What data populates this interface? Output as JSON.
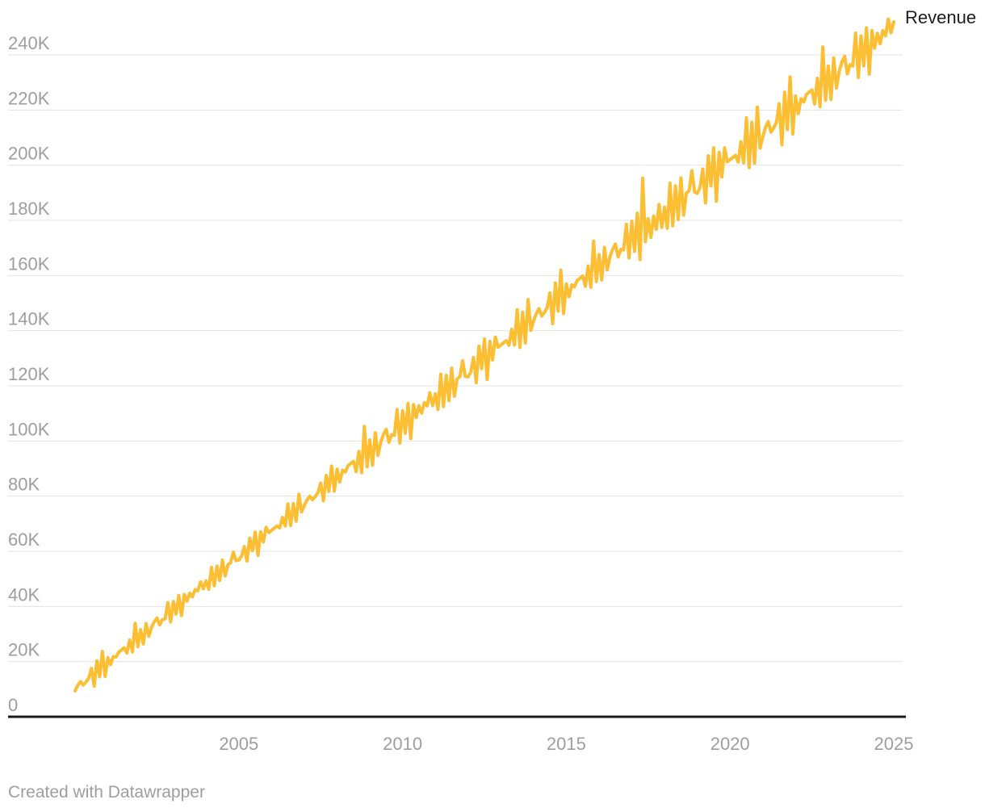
{
  "chart_data": {
    "type": "line",
    "title": "",
    "unit": "thousands",
    "grid": "horizontal",
    "legend": "line-end-label",
    "x_axis": {
      "start_year": 2000,
      "end_year": 2025,
      "interval": "monthly",
      "tick_years": [
        2005,
        2010,
        2015,
        2020,
        2025
      ]
    },
    "y_axis": {
      "tick_values": [
        0,
        20,
        40,
        60,
        80,
        100,
        120,
        140,
        160,
        180,
        200,
        220,
        240
      ],
      "tick_labels": [
        "0",
        "20K",
        "40K",
        "60K",
        "80K",
        "100K",
        "120K",
        "140K",
        "160K",
        "180K",
        "200K",
        "220K",
        "240K"
      ],
      "ylim_k": [
        0,
        256
      ]
    },
    "series": [
      {
        "name": "Revenue",
        "color": "#FCBE32",
        "values": [
          9.4,
          11.4,
          12.8,
          11.5,
          12.6,
          14.0,
          17.5,
          11.1,
          20.3,
          14.5,
          23.7,
          14.6,
          21.4,
          18.9,
          21.8,
          21.7,
          23.4,
          24.2,
          25.0,
          23.1,
          27.8,
          23.5,
          33.9,
          25.4,
          31.6,
          26.4,
          33.8,
          29.2,
          32.4,
          34.4,
          35.8,
          33.3,
          35.3,
          35.5,
          41.4,
          34.4,
          41.8,
          37.2,
          44.0,
          36.7,
          44.4,
          41.9,
          44.8,
          43.5,
          46.1,
          45.7,
          48.9,
          46.4,
          49.3,
          46.2,
          54.2,
          47.5,
          54.6,
          49.4,
          56.8,
          51.0,
          55.1,
          55.9,
          59.7,
          56.6,
          56.8,
          58.2,
          61.7,
          56.5,
          64.8,
          60.2,
          67.0,
          58.5,
          67.1,
          63.4,
          68.7,
          66.8,
          67.6,
          68.4,
          69.2,
          68.5,
          72.3,
          69.2,
          77.2,
          69.3,
          77.3,
          70.9,
          80.7,
          74.3,
          76.6,
          78.6,
          80.0,
          78.7,
          79.8,
          81.2,
          84.7,
          78.3,
          87.5,
          81.7,
          90.9,
          81.8,
          89.8,
          85.1,
          89.4,
          88.7,
          91.0,
          91.8,
          92.6,
          88.9,
          96.2,
          88.5,
          105.3,
          90.6,
          100.4,
          91.2,
          103.0,
          94.8,
          99.6,
          102.4,
          104.2,
          99.5,
          102.3,
          102.1,
          111.4,
          99.2,
          111.0,
          102.8,
          113.6,
          100.9,
          113.2,
          108.5,
          112.8,
          110.1,
          113.9,
          112.7,
          117.5,
          112.8,
          117.1,
          111.4,
          124.2,
          112.5,
          123.8,
          114.6,
          126.4,
          116.2,
          122.5,
          123.3,
          129.1,
          123.4,
          123.2,
          125.0,
          130.3,
          121.1,
          134.4,
          126.2,
          137.0,
          122.3,
          136.1,
          129.4,
          137.7,
          134.0,
          134.8,
          135.6,
          136.4,
          134.7,
          140.5,
          134.8,
          147.6,
          133.9,
          146.7,
          135.5,
          151.3,
          140.1,
          143.4,
          146.2,
          148.0,
          145.3,
          146.6,
          148.4,
          153.7,
          142.5,
          157.3,
          147.1,
          161.9,
          146.2,
          157.0,
          152.3,
          156.6,
          155.9,
          158.2,
          159.0,
          159.8,
          156.1,
          163.4,
          155.7,
          172.5,
          157.8,
          167.6,
          158.4,
          170.2,
          162.0,
          166.8,
          169.6,
          171.4,
          166.7,
          169.5,
          169.3,
          178.6,
          166.4,
          179.7,
          168.8,
          182.6,
          165.8,
          195.3,
          172.2,
          180.6,
          173.8,
          181.6,
          176.7,
          185.8,
          177.4,
          184.8,
          177.1,
          193.5,
          178.0,
          192.5,
          180.3,
          195.4,
          181.9,
          189.9,
          190.7,
          198.0,
          190.3,
          189.8,
          191.9,
          198.6,
          186.3,
          203.4,
          192.5,
          206.3,
          186.9,
          204.7,
          195.7,
          206.3,
          201.2,
          202.0,
          202.8,
          203.6,
          201.1,
          208.5,
          200.8,
          217.2,
          199.1,
          215.6,
          200.7,
          221.1,
          206.2,
          210.3,
          213.7,
          215.8,
          212.0,
          213.5,
          215.6,
          222.3,
          207.4,
          226.5,
          212.9,
          232.0,
          211.3,
          225.1,
          218.7,
          224.1,
          222.9,
          225.7,
          226.5,
          227.3,
          222.2,
          231.5,
          221.2,
          242.9,
          223.5,
          236.0,
          223.8,
          238.9,
          228.0,
          234.0,
          237.4,
          239.5,
          233.1,
          236.5,
          236.0,
          247.9,
          231.8,
          246.9,
          236.0,
          249.8,
          233.0,
          248.8,
          242.4,
          247.8,
          244.0,
          248.8,
          246.9,
          253.0,
          248.0,
          252.0
        ]
      }
    ]
  },
  "colors": {
    "line": "#FCBE32",
    "grid": "#E3E3E3",
    "axis": "#1A1A1A",
    "tick_text": "#9E9E9E",
    "label_text": "#1D1D1D",
    "credit_text": "#9E9E9E",
    "background": "#FFFFFF"
  },
  "footer": {
    "credit": "Created with Datawrapper"
  }
}
